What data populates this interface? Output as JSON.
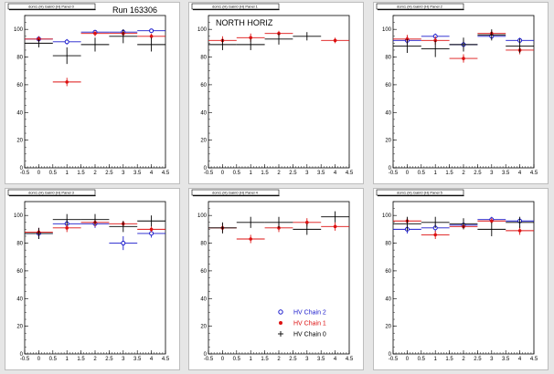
{
  "page": {
    "run_label": "Run 163306",
    "legend": [
      {
        "label": "HV Chain 2",
        "color": "#1a1acc",
        "marker": "circle"
      },
      {
        "label": "HV Chain 1",
        "color": "#dd1111",
        "marker": "star"
      },
      {
        "label": "HV Chain 0",
        "color": "#000000",
        "marker": "cross"
      }
    ]
  },
  "chart_data": [
    {
      "type": "scatter",
      "title": "dom1 (H) Gain0 (H) Panel 0",
      "annotation": "",
      "xlim": [
        -0.5,
        4.5
      ],
      "ylim": [
        0,
        110
      ],
      "xticks": [
        "-0.5",
        "0",
        "0.5",
        "1",
        "1.5",
        "2",
        "2.5",
        "3",
        "3.5",
        "4",
        "4.5"
      ],
      "yticks": [
        "0",
        "20",
        "40",
        "60",
        "80",
        "100"
      ],
      "series": [
        {
          "name": "HV Chain 2",
          "color": "#1a1acc",
          "marker": "circle",
          "points": [
            {
              "x": 0,
              "y": 93,
              "ey": 2
            },
            {
              "x": 1,
              "y": 91,
              "ey": 2
            },
            {
              "x": 2,
              "y": 98,
              "ey": 1
            },
            {
              "x": 3,
              "y": 98,
              "ey": 2
            },
            {
              "x": 4,
              "y": 99,
              "ey": 1
            }
          ]
        },
        {
          "name": "HV Chain 1",
          "color": "#dd1111",
          "marker": "star",
          "points": [
            {
              "x": 0,
              "y": 93,
              "ey": 2
            },
            {
              "x": 1,
              "y": 62,
              "ey": 3
            },
            {
              "x": 2,
              "y": 97,
              "ey": 2
            },
            {
              "x": 3,
              "y": 97,
              "ey": 2
            },
            {
              "x": 4,
              "y": 95,
              "ey": 2
            }
          ]
        },
        {
          "name": "HV Chain 0",
          "color": "#000000",
          "marker": "cross",
          "points": [
            {
              "x": 0,
              "y": 90,
              "ey": 3
            },
            {
              "x": 1,
              "y": 81,
              "ey": 6
            },
            {
              "x": 2,
              "y": 89,
              "ey": 5
            },
            {
              "x": 3,
              "y": 95,
              "ey": 5
            },
            {
              "x": 4,
              "y": 89,
              "ey": 5
            }
          ]
        }
      ]
    },
    {
      "type": "scatter",
      "title": "dom1 (H) Gain0 (H) Panel 1",
      "annotation": "NORTH HORIZ",
      "xlim": [
        -0.5,
        4.5
      ],
      "ylim": [
        0,
        110
      ],
      "xticks": [
        "-0.5",
        "0",
        "0.5",
        "1",
        "1.5",
        "2",
        "2.5",
        "3",
        "3.5",
        "4",
        "4.5"
      ],
      "yticks": [
        "0",
        "20",
        "40",
        "60",
        "80",
        "100"
      ],
      "series": [
        {
          "name": "HV Chain 1",
          "color": "#dd1111",
          "marker": "star",
          "points": [
            {
              "x": 0,
              "y": 92,
              "ey": 3
            },
            {
              "x": 1,
              "y": 94,
              "ey": 3
            },
            {
              "x": 2,
              "y": 97,
              "ey": 2
            },
            {
              "x": 4,
              "y": 92,
              "ey": 2
            }
          ]
        },
        {
          "name": "HV Chain 0",
          "color": "#000000",
          "marker": "cross",
          "points": [
            {
              "x": 0,
              "y": 89,
              "ey": 4
            },
            {
              "x": 1,
              "y": 89,
              "ey": 4
            },
            {
              "x": 2,
              "y": 93,
              "ey": 4
            },
            {
              "x": 3,
              "y": 95,
              "ey": 3
            }
          ]
        }
      ]
    },
    {
      "type": "scatter",
      "title": "dom1 (H) Gain0 (H) Panel 2",
      "annotation": "",
      "xlim": [
        -0.5,
        4.5
      ],
      "ylim": [
        0,
        110
      ],
      "xticks": [
        "-0.5",
        "0",
        "0.5",
        "1",
        "1.5",
        "2",
        "2.5",
        "3",
        "3.5",
        "4",
        "4.5"
      ],
      "yticks": [
        "0",
        "20",
        "40",
        "60",
        "80",
        "100"
      ],
      "series": [
        {
          "name": "HV Chain 2",
          "color": "#1a1acc",
          "marker": "circle",
          "points": [
            {
              "x": 0,
              "y": 92,
              "ey": 3
            },
            {
              "x": 1,
              "y": 95,
              "ey": 2
            },
            {
              "x": 2,
              "y": 89,
              "ey": 3
            },
            {
              "x": 3,
              "y": 95,
              "ey": 2
            },
            {
              "x": 4,
              "y": 92,
              "ey": 2
            }
          ]
        },
        {
          "name": "HV Chain 1",
          "color": "#dd1111",
          "marker": "star",
          "points": [
            {
              "x": 0,
              "y": 93,
              "ey": 3
            },
            {
              "x": 1,
              "y": 92,
              "ey": 3
            },
            {
              "x": 2,
              "y": 79,
              "ey": 3
            },
            {
              "x": 3,
              "y": 97,
              "ey": 2
            },
            {
              "x": 4,
              "y": 85,
              "ey": 3
            }
          ]
        },
        {
          "name": "HV Chain 0",
          "color": "#000000",
          "marker": "cross",
          "points": [
            {
              "x": 0,
              "y": 88,
              "ey": 5
            },
            {
              "x": 1,
              "y": 86,
              "ey": 6
            },
            {
              "x": 2,
              "y": 89,
              "ey": 5
            },
            {
              "x": 3,
              "y": 96,
              "ey": 4
            },
            {
              "x": 4,
              "y": 88,
              "ey": 5
            }
          ]
        }
      ]
    },
    {
      "type": "scatter",
      "title": "dom1 (H) Gain0 (H) Panel 3",
      "annotation": "",
      "xlim": [
        -0.5,
        4.5
      ],
      "ylim": [
        0,
        110
      ],
      "xticks": [
        "-0.5",
        "0",
        "0.5",
        "1",
        "1.5",
        "2",
        "2.5",
        "3",
        "3.5",
        "4",
        "4.5"
      ],
      "yticks": [
        "0",
        "20",
        "40",
        "60",
        "80",
        "100"
      ],
      "series": [
        {
          "name": "HV Chain 2",
          "color": "#1a1acc",
          "marker": "circle",
          "points": [
            {
              "x": 0,
              "y": 87,
              "ey": 4
            },
            {
              "x": 1,
              "y": 94,
              "ey": 3
            },
            {
              "x": 2,
              "y": 94,
              "ey": 3
            },
            {
              "x": 3,
              "y": 80,
              "ey": 5
            },
            {
              "x": 4,
              "y": 87,
              "ey": 3
            }
          ]
        },
        {
          "name": "HV Chain 1",
          "color": "#dd1111",
          "marker": "star",
          "points": [
            {
              "x": 0,
              "y": 88,
              "ey": 3
            },
            {
              "x": 1,
              "y": 91,
              "ey": 3
            },
            {
              "x": 2,
              "y": 95,
              "ey": 3
            },
            {
              "x": 3,
              "y": 94,
              "ey": 2
            },
            {
              "x": 4,
              "y": 90,
              "ey": 2
            }
          ]
        },
        {
          "name": "HV Chain 0",
          "color": "#000000",
          "marker": "cross",
          "points": [
            {
              "x": 0,
              "y": 87,
              "ey": 4
            },
            {
              "x": 1,
              "y": 97,
              "ey": 4
            },
            {
              "x": 2,
              "y": 97,
              "ey": 4
            },
            {
              "x": 3,
              "y": 92,
              "ey": 4
            },
            {
              "x": 4,
              "y": 96,
              "ey": 4
            }
          ]
        }
      ]
    },
    {
      "type": "scatter",
      "title": "dom1 (H) Gain0 (H) Panel 4",
      "annotation": "",
      "xlim": [
        -0.5,
        4.5
      ],
      "ylim": [
        0,
        110
      ],
      "xticks": [
        "-0.5",
        "0",
        "0.5",
        "1",
        "1.5",
        "2",
        "2.5",
        "3",
        "3.5",
        "4",
        "4.5"
      ],
      "yticks": [
        "0",
        "20",
        "40",
        "60",
        "80",
        "100"
      ],
      "series": [
        {
          "name": "HV Chain 1",
          "color": "#dd1111",
          "marker": "star",
          "points": [
            {
              "x": 0,
              "y": 91,
              "ey": 3
            },
            {
              "x": 1,
              "y": 83,
              "ey": 3
            },
            {
              "x": 2,
              "y": 91,
              "ey": 3
            },
            {
              "x": 3,
              "y": 95,
              "ey": 3
            },
            {
              "x": 4,
              "y": 92,
              "ey": 3
            }
          ]
        },
        {
          "name": "HV Chain 0",
          "color": "#000000",
          "marker": "cross",
          "points": [
            {
              "x": 0,
              "y": 91,
              "ey": 4
            },
            {
              "x": 1,
              "y": 95,
              "ey": 4
            },
            {
              "x": 2,
              "y": 95,
              "ey": 4
            },
            {
              "x": 3,
              "y": 90,
              "ey": 4
            },
            {
              "x": 4,
              "y": 99,
              "ey": 4
            }
          ]
        }
      ]
    },
    {
      "type": "scatter",
      "title": "dom1 (H) Gain0 (H) Panel 5",
      "annotation": "",
      "xlim": [
        -0.5,
        4.5
      ],
      "ylim": [
        0,
        110
      ],
      "xticks": [
        "-0.5",
        "0",
        "0.5",
        "1",
        "1.5",
        "2",
        "2.5",
        "3",
        "3.5",
        "4",
        "4.5"
      ],
      "yticks": [
        "0",
        "20",
        "40",
        "60",
        "80",
        "100"
      ],
      "series": [
        {
          "name": "HV Chain 2",
          "color": "#1a1acc",
          "marker": "circle",
          "points": [
            {
              "x": 0,
              "y": 90,
              "ey": 3
            },
            {
              "x": 1,
              "y": 91,
              "ey": 3
            },
            {
              "x": 2,
              "y": 93,
              "ey": 2
            },
            {
              "x": 3,
              "y": 97,
              "ey": 2
            },
            {
              "x": 4,
              "y": 96,
              "ey": 2
            }
          ]
        },
        {
          "name": "HV Chain 1",
          "color": "#dd1111",
          "marker": "star",
          "points": [
            {
              "x": 0,
              "y": 96,
              "ey": 2
            },
            {
              "x": 1,
              "y": 86,
              "ey": 3
            },
            {
              "x": 2,
              "y": 92,
              "ey": 2
            },
            {
              "x": 3,
              "y": 96,
              "ey": 2
            },
            {
              "x": 4,
              "y": 89,
              "ey": 3
            }
          ]
        },
        {
          "name": "HV Chain 0",
          "color": "#000000",
          "marker": "cross",
          "points": [
            {
              "x": 0,
              "y": 94,
              "ey": 5
            },
            {
              "x": 1,
              "y": 95,
              "ey": 4
            },
            {
              "x": 2,
              "y": 94,
              "ey": 4
            },
            {
              "x": 3,
              "y": 90,
              "ey": 5
            },
            {
              "x": 4,
              "y": 95,
              "ey": 4
            }
          ]
        }
      ]
    }
  ]
}
